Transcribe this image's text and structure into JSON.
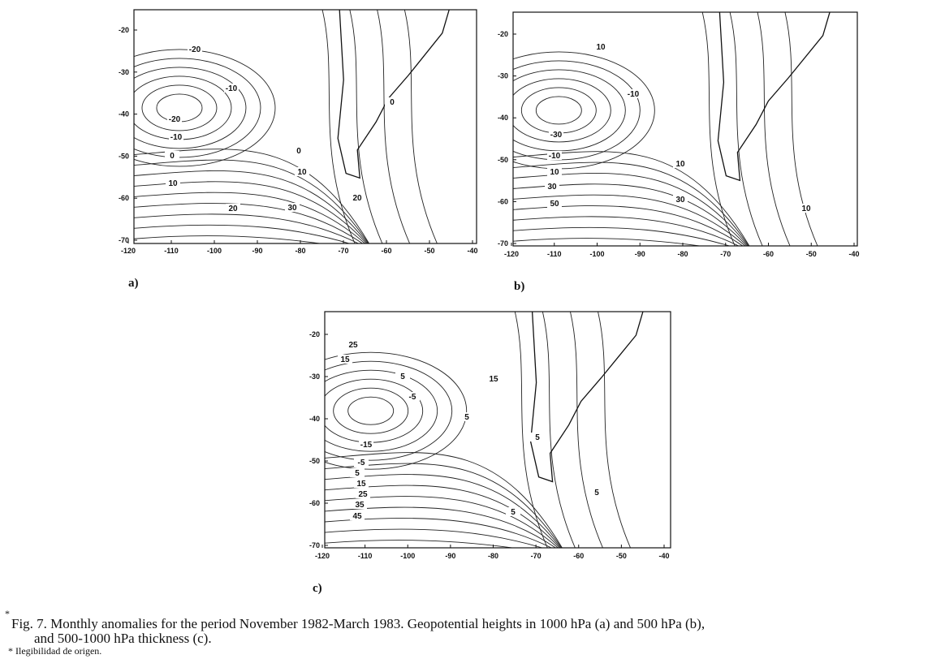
{
  "panels": [
    {
      "label": "a)",
      "xticks": [
        -120,
        -110,
        -100,
        -90,
        -80,
        -70,
        -60,
        -50,
        -40
      ],
      "yticks": [
        -20,
        -30,
        -40,
        -50,
        -60,
        -70
      ],
      "contour_labels": [
        "-20",
        "-10",
        "-20",
        "-10",
        "0",
        "0",
        "10",
        "10",
        "20",
        "30",
        "20",
        "0"
      ]
    },
    {
      "label": "b)",
      "xticks": [
        -120,
        -110,
        -100,
        -90,
        -80,
        -70,
        -60,
        -50,
        -40
      ],
      "yticks": [
        -20,
        -30,
        -40,
        -50,
        -60,
        -70
      ],
      "contour_labels": [
        "10",
        "-10",
        "-30",
        "-10",
        "10",
        "10",
        "30",
        "50",
        "30",
        "10"
      ]
    },
    {
      "label": "c)",
      "xticks": [
        -120,
        -110,
        -100,
        -90,
        -80,
        -70,
        -60,
        -50,
        -40
      ],
      "yticks": [
        -20,
        -30,
        -40,
        -50,
        -60,
        -70
      ],
      "contour_labels": [
        "25",
        "15",
        "5",
        "-5",
        "15",
        "-15",
        "-5",
        "5",
        "15",
        "25",
        "35",
        "45",
        "5",
        "5",
        "5",
        "5"
      ]
    }
  ],
  "caption": {
    "mark": "*",
    "lines": [
      "Fig. 7. Monthly anomalies for the period November 1982-March 1983. Geopotential heights in 1000 hPa (a) and 500 hPa (b),",
      "and 500-1000 hPa thickness (c)."
    ]
  },
  "footnote": "* Ilegibilidad de origen."
}
